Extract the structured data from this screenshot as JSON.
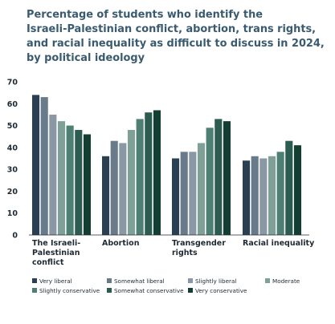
{
  "title_lines": [
    "Percentage of students who identify the",
    "Israeli-Palestinian conflict, abortion, trans rights,",
    "and racial inequality as difficult to discuss in 2024,",
    "by political ideology"
  ],
  "chart_data": {
    "type": "bar",
    "categories": [
      [
        "The Israeli-",
        "Palestinian",
        "conflict"
      ],
      [
        "Abortion"
      ],
      [
        "Transgender",
        "rights"
      ],
      [
        "Racial inequality"
      ]
    ],
    "ylim": [
      0,
      70
    ],
    "yticks": [
      0,
      10,
      20,
      30,
      40,
      50,
      60,
      70
    ],
    "grid": false,
    "legend_position": "bottom",
    "series": [
      {
        "name": "Very liberal",
        "color": "#2b3f53",
        "values": [
          64,
          36,
          35,
          34
        ]
      },
      {
        "name": "Somewhat liberal",
        "color": "#697b8b",
        "values": [
          63,
          43,
          38,
          36
        ]
      },
      {
        "name": "Slightly liberal",
        "color": "#8a98a5",
        "values": [
          55,
          42,
          38,
          35
        ]
      },
      {
        "name": "Moderate",
        "color": "#7ea096",
        "values": [
          52,
          48,
          42,
          36
        ]
      },
      {
        "name": "Slightly conservative",
        "color": "#4d7f72",
        "values": [
          50,
          53,
          49,
          38
        ]
      },
      {
        "name": "Somewhat conservative",
        "color": "#2c5c50",
        "values": [
          48,
          56,
          53,
          43
        ]
      },
      {
        "name": "Very conservative",
        "color": "#133f32",
        "values": [
          46,
          57,
          52,
          41
        ]
      }
    ]
  }
}
